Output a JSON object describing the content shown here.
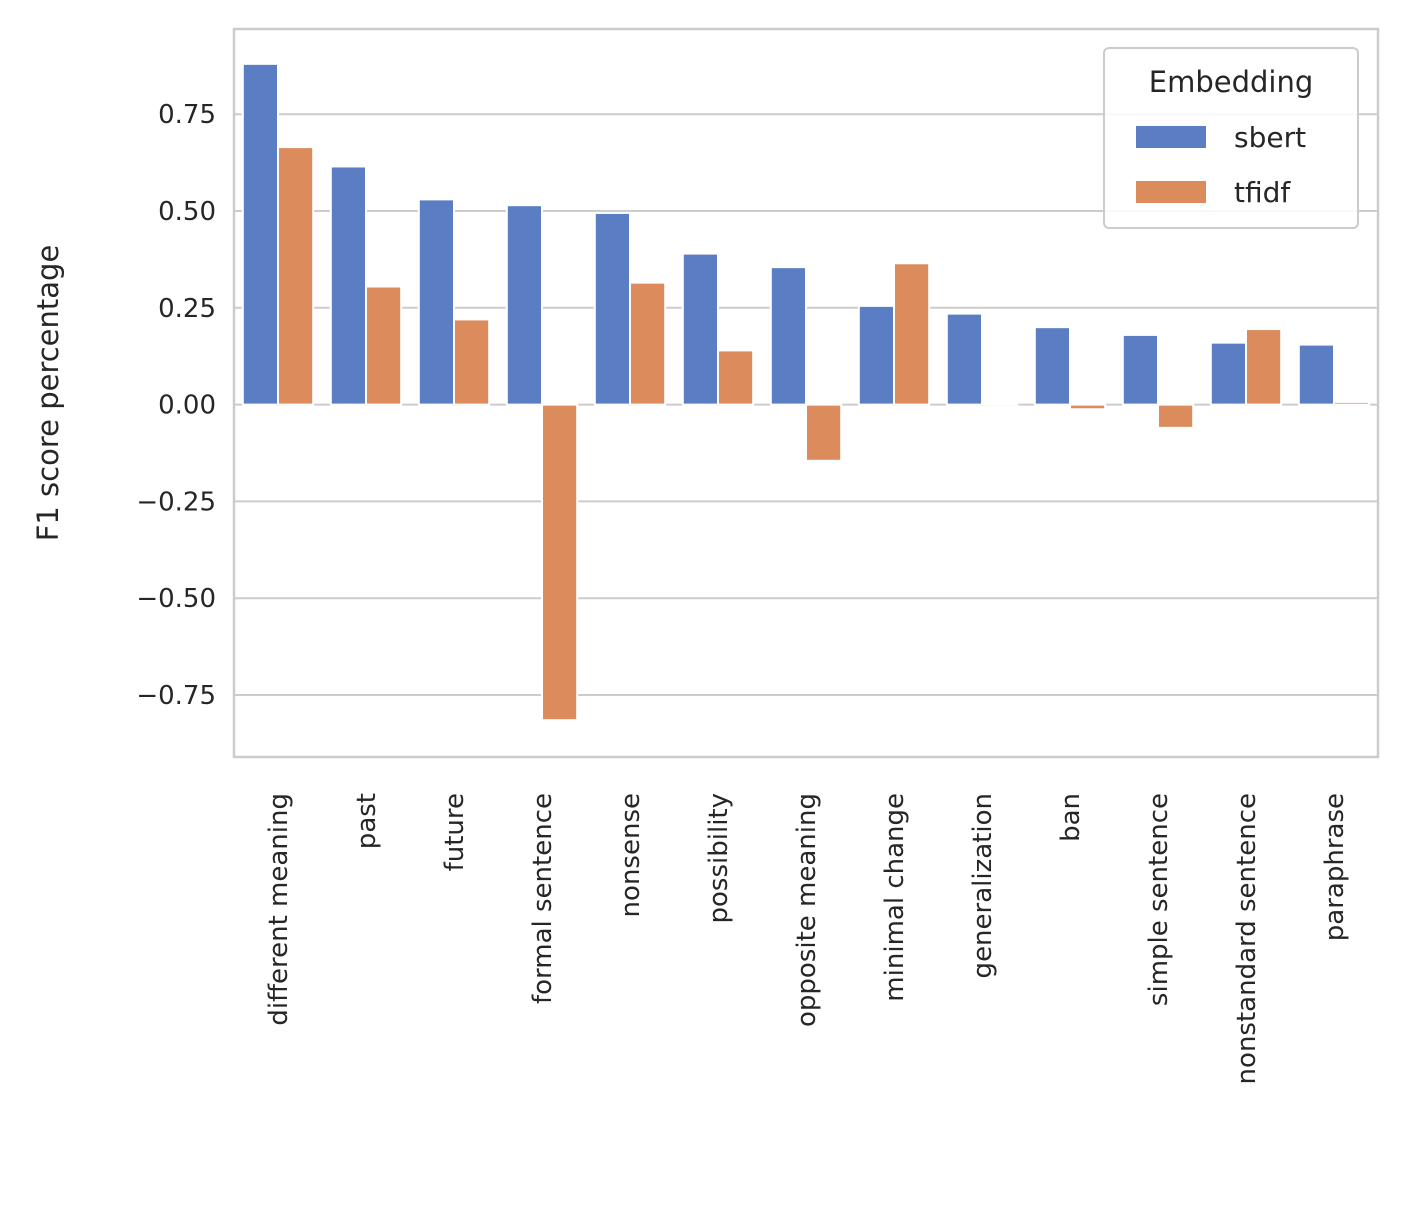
{
  "chart_data": {
    "type": "bar",
    "categories": [
      "different meaning",
      "past",
      "future",
      "formal sentence",
      "nonsense",
      "possibility",
      "opposite meaning",
      "minimal change",
      "generalization",
      "ban",
      "simple sentence",
      "nonstandard sentence",
      "paraphrase"
    ],
    "series": [
      {
        "name": "sbert",
        "color": "#5a7dc4",
        "values": [
          0.88,
          0.615,
          0.53,
          0.515,
          0.495,
          0.39,
          0.355,
          0.255,
          0.235,
          0.2,
          0.18,
          0.16,
          0.155
        ]
      },
      {
        "name": "tfidf",
        "color": "#db8b5c",
        "values": [
          0.665,
          0.305,
          0.22,
          -0.815,
          0.315,
          0.14,
          -0.145,
          0.365,
          0.003,
          -0.012,
          -0.06,
          0.195,
          0.007
        ]
      }
    ],
    "title": "",
    "xlabel": "",
    "ylabel": "F1 score percentage",
    "ylim": [
      -0.91,
      0.97
    ],
    "yticks": [
      -0.75,
      -0.5,
      -0.25,
      0.0,
      0.25,
      0.5,
      0.75
    ],
    "ytick_labels": [
      "−0.75",
      "−0.50",
      "−0.25",
      "0.00",
      "0.25",
      "0.50",
      "0.75"
    ],
    "grid": true,
    "legend": {
      "title": "Embedding",
      "placement": "top-right"
    }
  }
}
